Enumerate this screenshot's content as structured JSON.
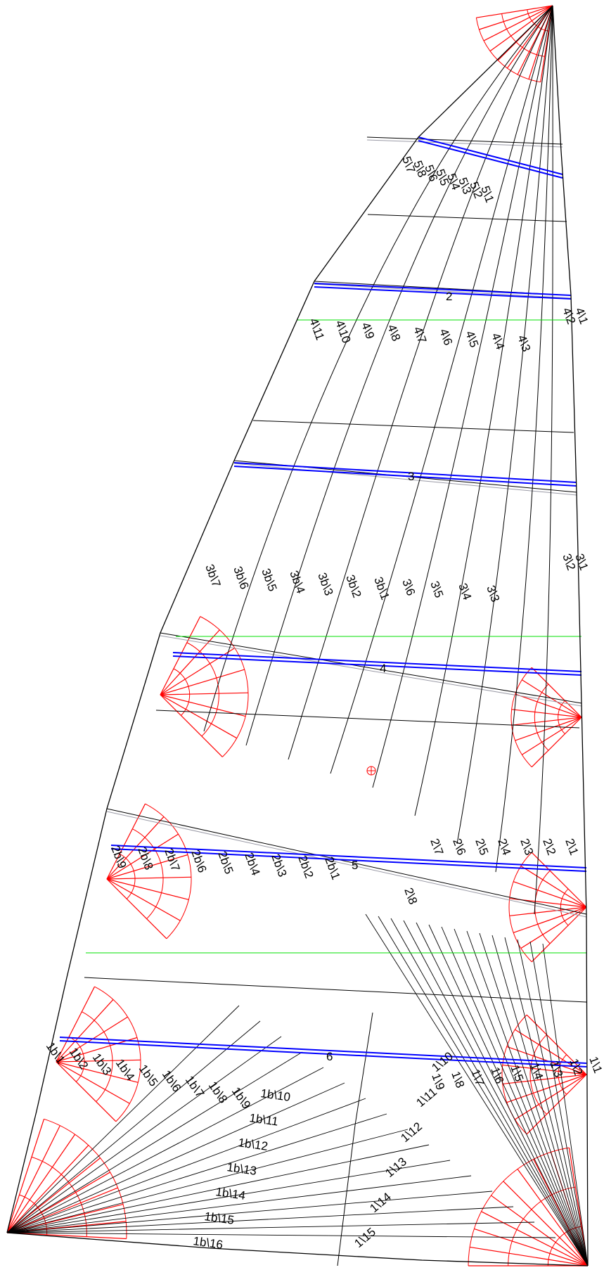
{
  "colors": {
    "panel_line": "#000000",
    "seam_shadow": "#9a9aa6",
    "batten": "#0000ff",
    "reference_line": "#00e000",
    "reinforcement": "#ff0000",
    "background": "#ffffff"
  },
  "batten_numbers": [
    "2",
    "3",
    "4",
    "5",
    "6"
  ],
  "labels": {
    "head": [
      "5\\7",
      "5\\8",
      "5\\6",
      "5\\5",
      "5\\4",
      "5\\3",
      "5\\2",
      "5\\1"
    ],
    "upper": [
      "4\\11",
      "4\\10",
      "4\\9",
      "4\\8",
      "4\\7",
      "4\\6",
      "4\\5",
      "4\\4",
      "4\\3",
      "4\\2",
      "4\\1"
    ],
    "upper_mid": [
      "3b\\7",
      "3b\\6",
      "3b\\5",
      "3b\\4",
      "3b\\3",
      "3b\\2",
      "3b\\1",
      "3\\6",
      "3\\5",
      "3\\4",
      "3\\3",
      "3\\2",
      "3\\1"
    ],
    "lower_mid": [
      "2b\\9",
      "2b\\8",
      "2b\\7",
      "2b\\6",
      "2b\\5",
      "2b\\4",
      "2b\\3",
      "2b\\2",
      "2b\\1",
      "2\\8",
      "2\\7",
      "2\\6",
      "2\\5",
      "2\\4",
      "2\\3",
      "2\\2",
      "2\\1"
    ],
    "luff_foot": [
      "1b\\1",
      "1b\\2",
      "1b\\3",
      "1b\\4",
      "1b\\5",
      "1b\\6",
      "1b\\7",
      "1b\\8",
      "1b\\9",
      "1b\\10",
      "1b\\11",
      "1b\\12",
      "1b\\13",
      "1b\\14",
      "1b\\15",
      "1b\\16"
    ],
    "leech_foot": [
      "1\\1",
      "1\\2",
      "1\\3",
      "1\\4",
      "1\\5",
      "1\\6",
      "1\\7",
      "1\\8",
      "1\\9",
      "1\\10",
      "1\\11",
      "1\\12",
      "1\\13",
      "1\\14",
      "1\\15"
    ]
  }
}
